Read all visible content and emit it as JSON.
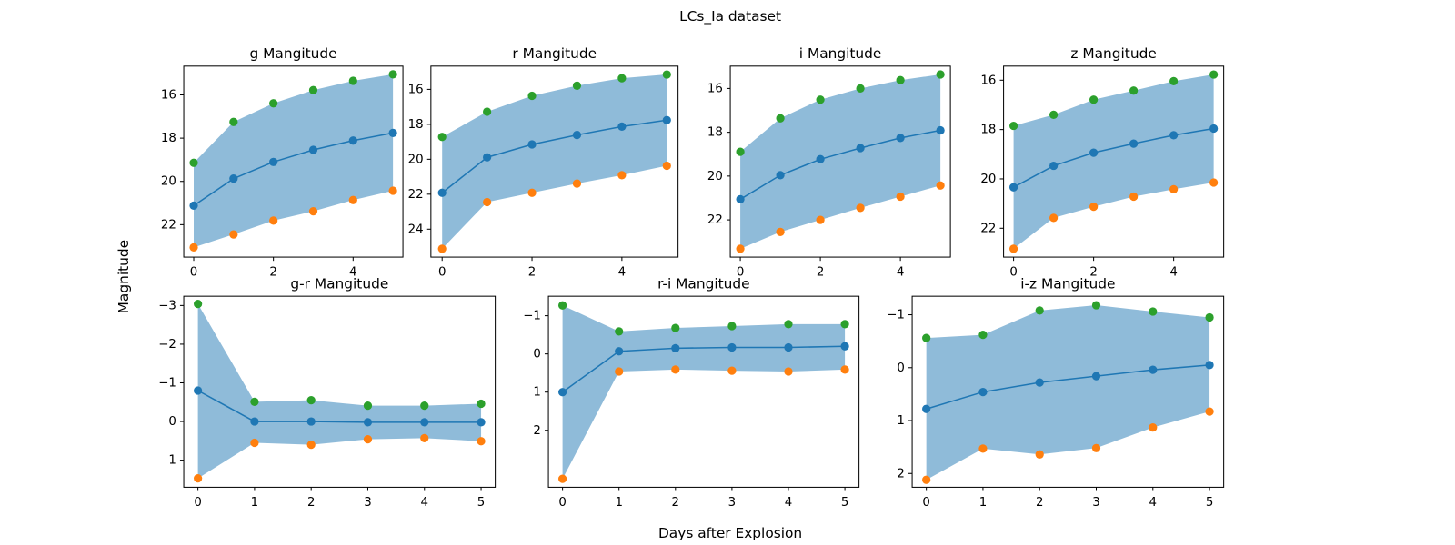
{
  "figure": {
    "title": "LCs_Ia dataset",
    "xlabel": "Days after Explosion",
    "ylabel": "Magnitude"
  },
  "chart_data": [
    {
      "type": "line",
      "title": "g Mangitude",
      "x": [
        0,
        1,
        2,
        3,
        4,
        5
      ],
      "xlim": [
        -0.25,
        5.25
      ],
      "xticks": [
        0,
        2,
        4
      ],
      "ylim": [
        23.5,
        14.67
      ],
      "yticks": [
        16,
        18,
        20,
        22
      ],
      "fill_color": "#8fbbd9",
      "series": [
        {
          "color": "#1f77b4",
          "line": true,
          "values": [
            21.12,
            19.87,
            19.1,
            18.54,
            18.11,
            17.76
          ]
        },
        {
          "color": "#2ca02c",
          "line": false,
          "values": [
            19.14,
            17.25,
            16.39,
            15.78,
            15.35,
            15.05
          ]
        },
        {
          "color": "#ff7f0e",
          "line": false,
          "values": [
            23.05,
            22.45,
            21.81,
            21.38,
            20.86,
            20.43
          ]
        }
      ]
    },
    {
      "type": "line",
      "title": "r Mangitude",
      "x": [
        0,
        1,
        2,
        3,
        4,
        5
      ],
      "xlim": [
        -0.25,
        5.25
      ],
      "xticks": [
        0,
        2,
        4
      ],
      "ylim": [
        25.6,
        14.67
      ],
      "yticks": [
        16,
        18,
        20,
        22,
        24
      ],
      "fill_color": "#8fbbd9",
      "series": [
        {
          "color": "#1f77b4",
          "line": true,
          "values": [
            21.92,
            19.89,
            19.15,
            18.61,
            18.13,
            17.76
          ]
        },
        {
          "color": "#2ca02c",
          "line": false,
          "values": [
            18.72,
            17.28,
            16.37,
            15.79,
            15.36,
            15.15
          ]
        },
        {
          "color": "#ff7f0e",
          "line": false,
          "values": [
            25.12,
            22.45,
            21.92,
            21.39,
            20.91,
            20.37
          ]
        }
      ]
    },
    {
      "type": "line",
      "title": "i Mangitude",
      "x": [
        0,
        1,
        2,
        3,
        4,
        5
      ],
      "xlim": [
        -0.25,
        5.25
      ],
      "xticks": [
        0,
        2,
        4
      ],
      "ylim": [
        23.7,
        14.98
      ],
      "yticks": [
        16,
        18,
        20,
        22
      ],
      "fill_color": "#8fbbd9",
      "series": [
        {
          "color": "#1f77b4",
          "line": true,
          "values": [
            21.06,
            19.96,
            19.23,
            18.72,
            18.26,
            17.91
          ]
        },
        {
          "color": "#2ca02c",
          "line": false,
          "values": [
            18.89,
            17.36,
            16.51,
            16.0,
            15.62,
            15.36
          ]
        },
        {
          "color": "#ff7f0e",
          "line": false,
          "values": [
            23.32,
            22.55,
            22.0,
            21.45,
            20.94,
            20.43
          ]
        }
      ]
    },
    {
      "type": "line",
      "title": "z Mangitude",
      "x": [
        0,
        1,
        2,
        3,
        4,
        5
      ],
      "xlim": [
        -0.25,
        5.25
      ],
      "xticks": [
        0,
        2,
        4
      ],
      "ylim": [
        23.17,
        15.43
      ],
      "yticks": [
        16,
        18,
        20,
        22
      ],
      "fill_color": "#8fbbd9",
      "series": [
        {
          "color": "#1f77b4",
          "line": true,
          "values": [
            20.34,
            19.47,
            18.94,
            18.57,
            18.23,
            17.96
          ]
        },
        {
          "color": "#2ca02c",
          "line": false,
          "values": [
            17.85,
            17.4,
            16.79,
            16.42,
            16.04,
            15.77
          ]
        },
        {
          "color": "#ff7f0e",
          "line": false,
          "values": [
            22.83,
            21.58,
            21.13,
            20.72,
            20.42,
            20.15
          ]
        }
      ]
    },
    {
      "type": "line",
      "title": "g-r Mangitude",
      "x": [
        0,
        1,
        2,
        3,
        4,
        5
      ],
      "xlim": [
        -0.25,
        5.25
      ],
      "xticks": [
        0,
        1,
        2,
        3,
        4,
        5
      ],
      "ylim": [
        1.7,
        -3.24
      ],
      "yticks": [
        {
          "value": -3,
          "label": "−3"
        },
        {
          "value": -2,
          "label": "−2"
        },
        {
          "value": -1,
          "label": "−1"
        },
        0,
        1
      ],
      "fill_color": "#8fbbd9",
      "series": [
        {
          "color": "#1f77b4",
          "line": true,
          "values": [
            -0.8,
            0,
            0,
            0.02,
            0.02,
            0.02
          ]
        },
        {
          "color": "#2ca02c",
          "line": false,
          "values": [
            -3.04,
            -0.51,
            -0.55,
            -0.41,
            -0.41,
            -0.46
          ]
        },
        {
          "color": "#ff7f0e",
          "line": false,
          "values": [
            1.47,
            0.55,
            0.6,
            0.46,
            0.43,
            0.51
          ]
        }
      ]
    },
    {
      "type": "line",
      "title": "r-i Mangitude",
      "x": [
        0,
        1,
        2,
        3,
        4,
        5
      ],
      "xlim": [
        -0.25,
        5.25
      ],
      "xticks": [
        0,
        1,
        2,
        3,
        4,
        5
      ],
      "ylim": [
        3.49,
        -1.51
      ],
      "yticks": [
        {
          "value": -1,
          "label": "−1"
        },
        0,
        1,
        2
      ],
      "fill_color": "#8fbbd9",
      "series": [
        {
          "color": "#1f77b4",
          "line": true,
          "values": [
            1.0,
            -0.07,
            -0.15,
            -0.17,
            -0.17,
            -0.2
          ]
        },
        {
          "color": "#2ca02c",
          "line": false,
          "values": [
            -1.27,
            -0.59,
            -0.68,
            -0.73,
            -0.78,
            -0.78
          ]
        },
        {
          "color": "#ff7f0e",
          "line": false,
          "values": [
            3.27,
            0.46,
            0.41,
            0.44,
            0.46,
            0.41
          ]
        }
      ]
    },
    {
      "type": "line",
      "title": "i-z Mangitude",
      "x": [
        0,
        1,
        2,
        3,
        4,
        5
      ],
      "xlim": [
        -0.25,
        5.25
      ],
      "xticks": [
        0,
        1,
        2,
        3,
        4,
        5
      ],
      "ylim": [
        2.26,
        -1.35
      ],
      "yticks": [
        {
          "value": -1,
          "label": "−1"
        },
        0,
        1,
        2
      ],
      "fill_color": "#8fbbd9",
      "series": [
        {
          "color": "#1f77b4",
          "line": true,
          "values": [
            0.78,
            0.46,
            0.28,
            0.16,
            0.04,
            -0.05
          ]
        },
        {
          "color": "#2ca02c",
          "line": false,
          "values": [
            -0.56,
            -0.62,
            -1.08,
            -1.18,
            -1.06,
            -0.95
          ]
        },
        {
          "color": "#ff7f0e",
          "line": false,
          "values": [
            2.12,
            1.53,
            1.64,
            1.52,
            1.13,
            0.83
          ]
        }
      ]
    }
  ]
}
